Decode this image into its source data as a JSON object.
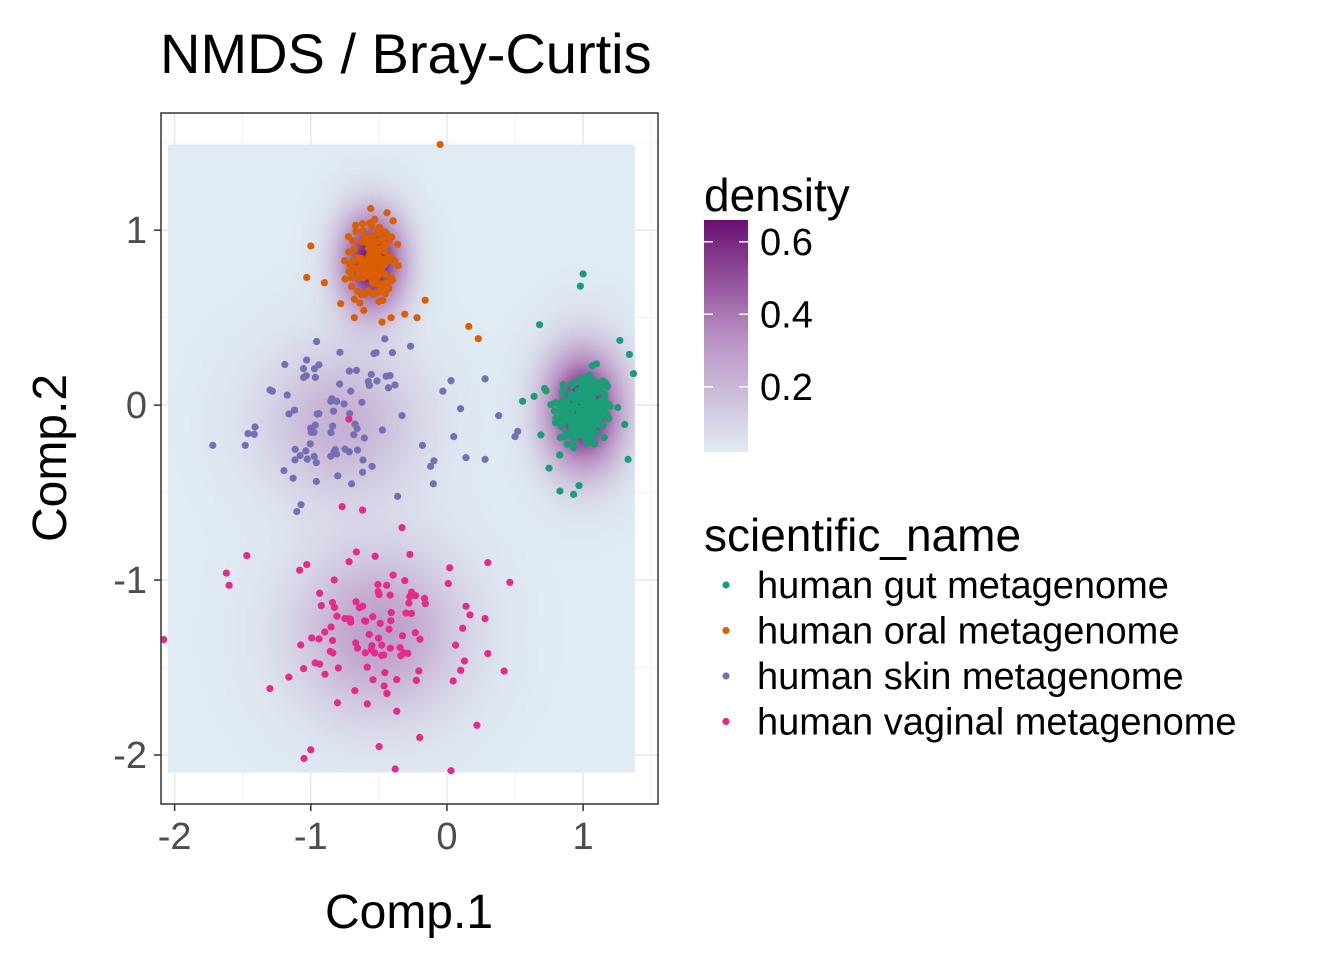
{
  "chart_data": {
    "type": "scatter",
    "title": "NMDS / Bray-Curtis",
    "xlabel": "Comp.1",
    "ylabel": "Comp.2",
    "xlim": [
      -2.1,
      1.55
    ],
    "ylim": [
      -2.28,
      1.67
    ],
    "x_ticks": [
      -2,
      -1,
      0,
      1
    ],
    "y_ticks": [
      1,
      0,
      -1,
      -2
    ],
    "x_tick_labels": [
      "-2",
      "-1",
      "0",
      "1"
    ],
    "y_tick_labels": [
      "1",
      "0",
      "-1",
      "-2"
    ],
    "grid": true,
    "density_legend": {
      "title": "density",
      "ticks": [
        0.6,
        0.4,
        0.2
      ],
      "tick_labels": [
        "0.6",
        "0.4",
        "0.2"
      ],
      "range": [
        0.02,
        0.66
      ],
      "colors": [
        "#e0ebf3",
        "#6b0f72"
      ]
    },
    "legend": {
      "title": "scientific_name",
      "placement": "right"
    },
    "series": [
      {
        "name": "human gut metagenome",
        "color": "#1b9e77",
        "cluster": {
          "center": [
            1.0,
            -0.03
          ],
          "sd": [
            0.11,
            0.11
          ],
          "n": 240
        },
        "points": [
          [
            0.68,
            0.46
          ],
          [
            1.0,
            0.75
          ],
          [
            0.98,
            0.68
          ],
          [
            1.34,
            0.29
          ],
          [
            1.37,
            0.18
          ],
          [
            1.33,
            -0.31
          ],
          [
            0.93,
            -0.51
          ],
          [
            0.97,
            -0.46
          ],
          [
            0.75,
            -0.36
          ],
          [
            0.69,
            -0.17
          ],
          [
            1.27,
            0.37
          ],
          [
            0.64,
            0.05
          ]
        ]
      },
      {
        "name": "human oral metagenome",
        "color": "#d95f02",
        "cluster": {
          "center": [
            -0.55,
            0.82
          ],
          "sd": [
            0.08,
            0.12
          ],
          "n": 150
        },
        "points": [
          [
            -0.05,
            1.49
          ],
          [
            -1.0,
            0.91
          ],
          [
            -1.03,
            0.73
          ],
          [
            -0.68,
            0.5
          ],
          [
            -0.41,
            0.5
          ],
          [
            -0.31,
            0.52
          ],
          [
            -0.22,
            0.5
          ],
          [
            0.16,
            0.45
          ],
          [
            0.23,
            0.38
          ],
          [
            -0.16,
            0.6
          ],
          [
            -0.9,
            0.7
          ],
          [
            -0.78,
            0.58
          ]
        ]
      },
      {
        "name": "human skin metagenome",
        "color": "#7570b3",
        "cluster": {
          "center": [
            -0.85,
            -0.08
          ],
          "sd": [
            0.27,
            0.21
          ],
          "n": 80
        },
        "points": [
          [
            0.28,
            -0.31
          ],
          [
            0.38,
            -0.06
          ],
          [
            0.05,
            -0.18
          ],
          [
            0.1,
            -0.02
          ],
          [
            -0.03,
            0.08
          ],
          [
            0.03,
            0.14
          ],
          [
            0.28,
            0.15
          ],
          [
            -0.18,
            -0.23
          ],
          [
            -0.12,
            -0.35
          ],
          [
            0.14,
            -0.3
          ],
          [
            -0.33,
            -0.06
          ],
          [
            -0.52,
            0.3
          ],
          [
            -0.4,
            0.3
          ],
          [
            0.52,
            -0.15
          ],
          [
            0.5,
            -0.18
          ],
          [
            -0.1,
            -0.45
          ],
          [
            -0.55,
            -0.35
          ],
          [
            -0.7,
            -0.45
          ],
          [
            -1.72,
            -0.23
          ]
        ]
      },
      {
        "name": "human vaginal metagenome",
        "color": "#e7298a",
        "cluster": {
          "center": [
            -0.5,
            -1.32
          ],
          "sd": [
            0.32,
            0.23
          ],
          "n": 95
        },
        "points": [
          [
            -2.08,
            -1.34
          ],
          [
            -1.62,
            -0.96
          ],
          [
            -1.6,
            -1.03
          ],
          [
            -1.47,
            -0.86
          ],
          [
            -1.3,
            -1.62
          ],
          [
            -1.05,
            -2.02
          ],
          [
            -1.0,
            -1.97
          ],
          [
            -0.38,
            -2.08
          ],
          [
            0.03,
            -2.09
          ],
          [
            -0.2,
            -1.9
          ],
          [
            0.22,
            -1.83
          ],
          [
            0.42,
            -1.52
          ],
          [
            0.3,
            -1.42
          ],
          [
            0.28,
            -1.22
          ],
          [
            0.14,
            -1.15
          ],
          [
            0.3,
            -0.9
          ],
          [
            0.02,
            -0.93
          ],
          [
            0.01,
            -1.02
          ],
          [
            -0.33,
            -0.7
          ],
          [
            -0.62,
            -0.6
          ],
          [
            -0.77,
            -0.58
          ],
          [
            -0.72,
            -0.08
          ]
        ]
      }
    ]
  }
}
